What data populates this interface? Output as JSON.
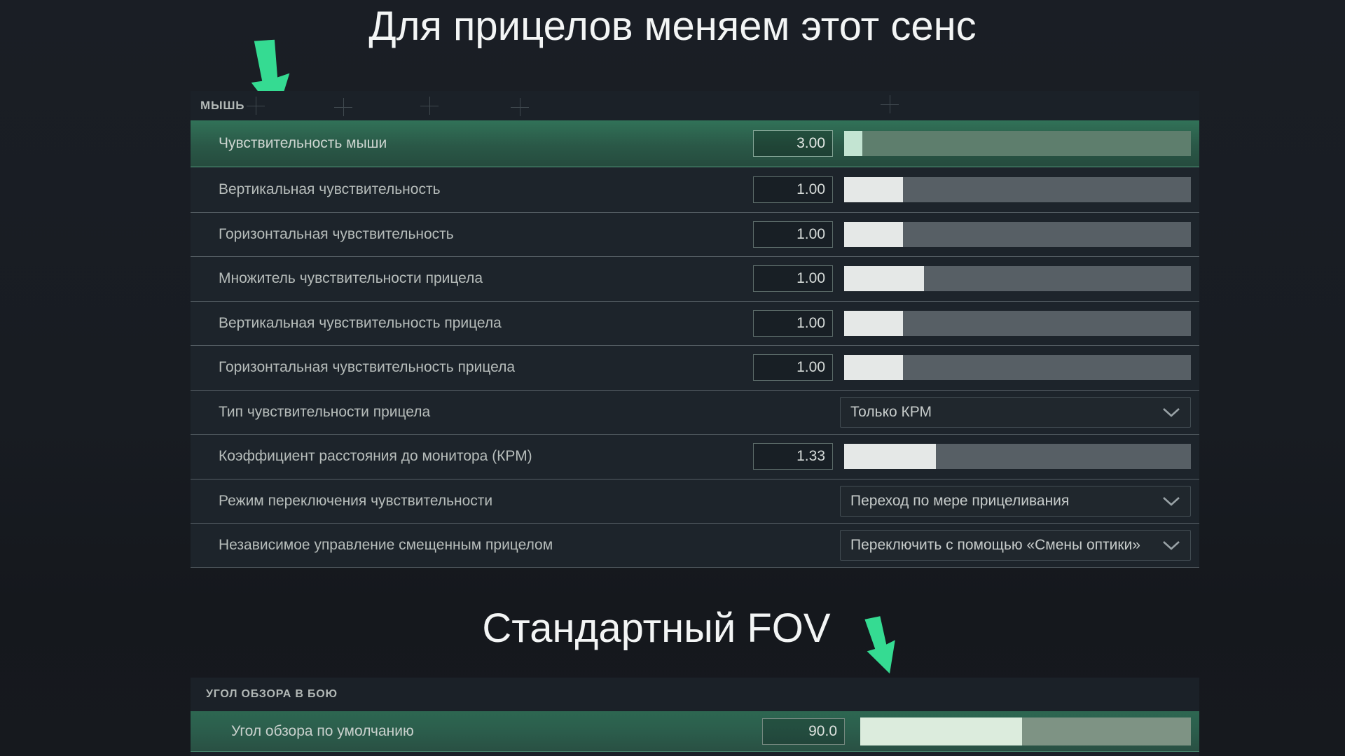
{
  "annotations": {
    "top_title": "Для прицелов меняем этот сенс",
    "bottom_title": "Стандартный FOV"
  },
  "colors": {
    "accent_arrow_green": "#35db92",
    "highlight_row_green": "#2e6b54",
    "slider_track_gray": "#575f65",
    "slider_fill_white": "#e5e8e7",
    "panel_background": "#1b2128"
  },
  "icons": {
    "arrow_down": "thick green annotation arrow pointing down",
    "chevron_down": "v"
  },
  "mouse": {
    "header": "МЫШЬ",
    "rows": [
      {
        "label": "Чувствительность мыши",
        "value": "3.00",
        "control": "slider",
        "fill_pct": 5.2,
        "highlighted": true
      },
      {
        "label": "Вертикальная чувствительность",
        "value": "1.00",
        "control": "slider",
        "fill_pct": 17
      },
      {
        "label": "Горизонтальная чувствительность",
        "value": "1.00",
        "control": "slider",
        "fill_pct": 17
      },
      {
        "label": "Множитель чувствительности прицела",
        "value": "1.00",
        "control": "slider",
        "fill_pct": 23
      },
      {
        "label": "Вертикальная чувствительность прицела",
        "value": "1.00",
        "control": "slider",
        "fill_pct": 17
      },
      {
        "label": "Горизонтальная чувствительность прицела",
        "value": "1.00",
        "control": "slider",
        "fill_pct": 17
      },
      {
        "label": "Тип чувствительности прицела",
        "value": "Только КРМ",
        "control": "dropdown"
      },
      {
        "label": "Коэффициент расстояния до монитора (КРМ)",
        "value": "1.33",
        "control": "slider",
        "fill_pct": 26.5
      },
      {
        "label": "Режим переключения чувствительности",
        "value": "Переход по мере прицеливания",
        "control": "dropdown"
      },
      {
        "label": "Независимое управление смещенным прицелом",
        "value": "Переключить с помощью «Смены оптики»",
        "control": "dropdown"
      }
    ]
  },
  "fov": {
    "header": "УГОЛ ОБЗОРА В БОЮ",
    "rows": [
      {
        "label": "Угол обзора по умолчанию",
        "value": "90.0",
        "control": "slider",
        "fill_pct": 49,
        "highlighted": true
      }
    ]
  }
}
